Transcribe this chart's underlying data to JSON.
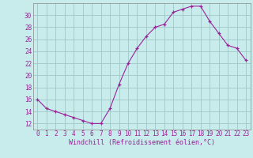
{
  "x": [
    0,
    1,
    2,
    3,
    4,
    5,
    6,
    7,
    8,
    9,
    10,
    11,
    12,
    13,
    14,
    15,
    16,
    17,
    18,
    19,
    20,
    21,
    22,
    23
  ],
  "y": [
    16,
    14.5,
    14,
    13.5,
    13,
    12.5,
    12,
    12,
    14.5,
    18.5,
    22,
    24.5,
    26.5,
    28,
    28.5,
    30.5,
    31,
    31.5,
    31.5,
    29,
    27,
    25,
    24.5,
    22.5
  ],
  "line_color": "#992299",
  "marker": "+",
  "bg_color": "#c8ecec",
  "grid_color": "#a0c8c8",
  "xlabel": "Windchill (Refroidissement éolien,°C)",
  "ylim": [
    11,
    32
  ],
  "yticks": [
    12,
    14,
    16,
    18,
    20,
    22,
    24,
    26,
    28,
    30
  ],
  "xticks": [
    0,
    1,
    2,
    3,
    4,
    5,
    6,
    7,
    8,
    9,
    10,
    11,
    12,
    13,
    14,
    15,
    16,
    17,
    18,
    19,
    20,
    21,
    22,
    23
  ],
  "tick_color": "#992299",
  "label_fontsize": 6,
  "tick_fontsize": 5.5,
  "spine_color": "#888888"
}
